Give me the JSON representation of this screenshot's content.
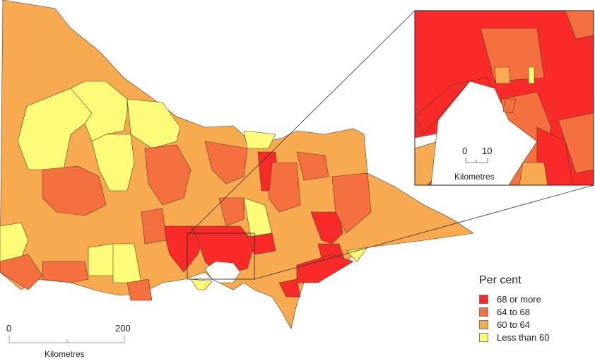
{
  "legend": {
    "title": "Per cent",
    "items": [
      {
        "label": "68 or more",
        "color": "#f82a2a"
      },
      {
        "label": "64 to 68",
        "color": "#f4703e"
      },
      {
        "label": "60 to 64",
        "color": "#f8aa50"
      },
      {
        "label": "Less than 60",
        "color": "#fcfc78"
      }
    ]
  },
  "main_scale": {
    "start": "0",
    "end": "200",
    "unit": "Kilometres"
  },
  "inset_scale": {
    "start": "0",
    "end": "10",
    "unit": "Kilometres"
  }
}
